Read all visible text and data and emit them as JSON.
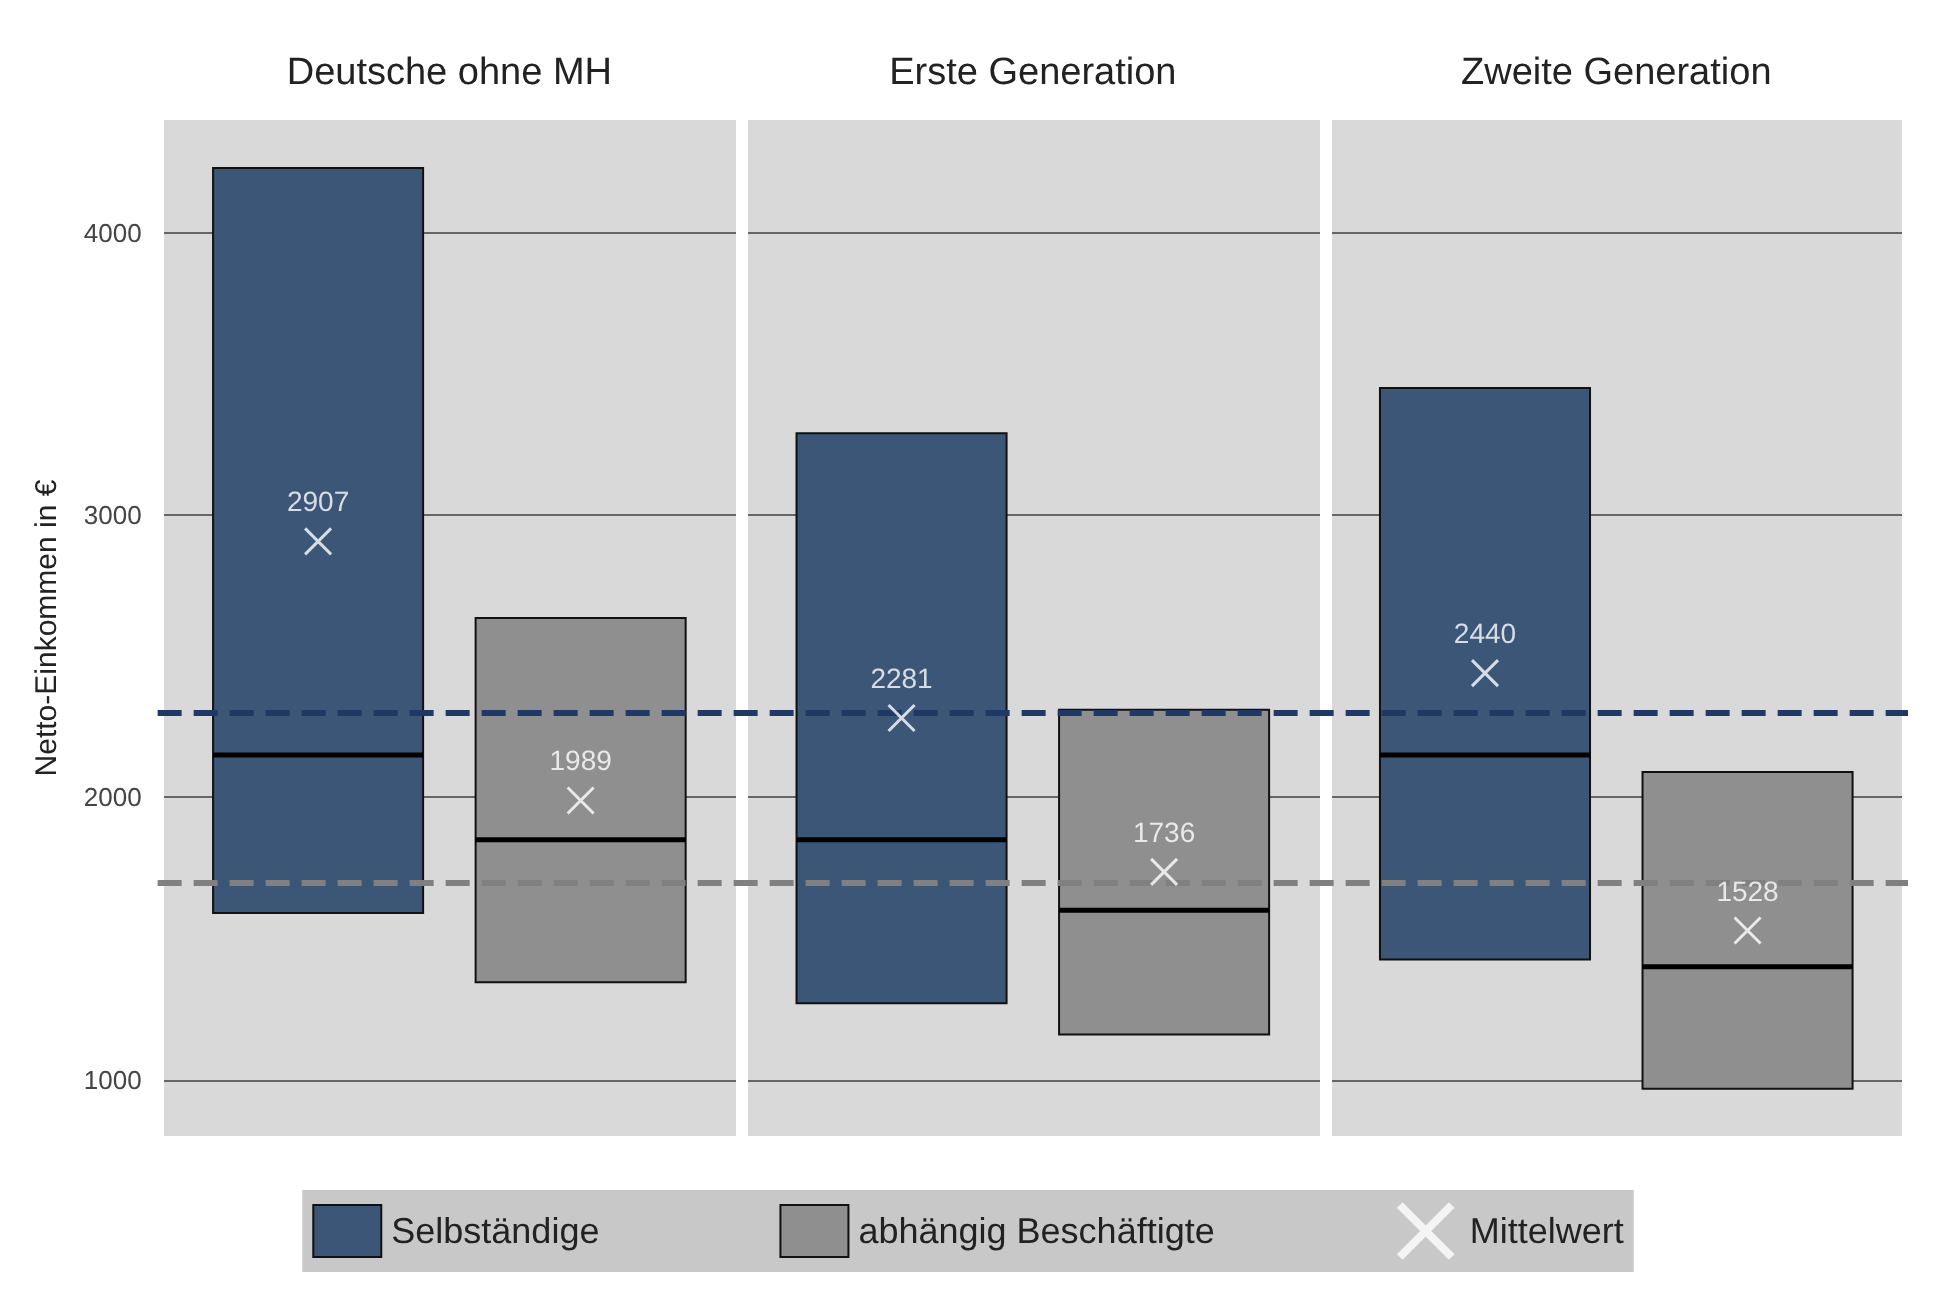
{
  "chart_data": {
    "type": "box",
    "categories": [
      "Deutsche ohne MH",
      "Erste Generation",
      "Zweite Generation"
    ],
    "ylabel": "Netto-Einkommen in €",
    "ylim": [
      800,
      4400
    ],
    "yticks": [
      1000,
      2000,
      3000,
      4000
    ],
    "grid": "y",
    "legend": "bottom",
    "data_labels": true,
    "series": [
      {
        "name": "Selbständige",
        "color": "#3b5677",
        "boxes": [
          {
            "low": 1590,
            "q1": 1590,
            "median": 2150,
            "q3": 4230,
            "high": 4230
          },
          {
            "low": 1270,
            "q1": 1270,
            "median": 1850,
            "q3": 3290,
            "high": 3290
          },
          {
            "low": 1425,
            "q1": 1425,
            "median": 2150,
            "q3": 3450,
            "high": 3450
          }
        ]
      },
      {
        "name": "abhängig Beschäftigte",
        "color": "#8f8f8f",
        "boxes": [
          {
            "low": 1345,
            "q1": 1345,
            "median": 1850,
            "q3": 2635,
            "high": 2635
          },
          {
            "low": 1160,
            "q1": 1160,
            "median": 1600,
            "q3": 2310,
            "high": 2310
          },
          {
            "low": 967,
            "q1": 967,
            "median": 1400,
            "q3": 2090,
            "high": 2090
          }
        ]
      },
      {
        "name": "Mittelwert",
        "type": "scatter",
        "marker": "cross",
        "color": "#ffffff",
        "x": [
          "Deutsche ohne MH",
          "Deutsche ohne MH",
          "Erste Generation",
          "Erste Generation",
          "Zweite Generation",
          "Zweite Generation"
        ],
        "values": [
          2907,
          1989,
          2281,
          1736,
          2440,
          1528
        ]
      }
    ],
    "ref_lines": [
      {
        "axis": "y",
        "value": 2300,
        "color": "#1f3864",
        "line_style": "dashed"
      },
      {
        "axis": "y",
        "value": 1700,
        "color": "#808080",
        "line_style": "dashed"
      }
    ]
  }
}
